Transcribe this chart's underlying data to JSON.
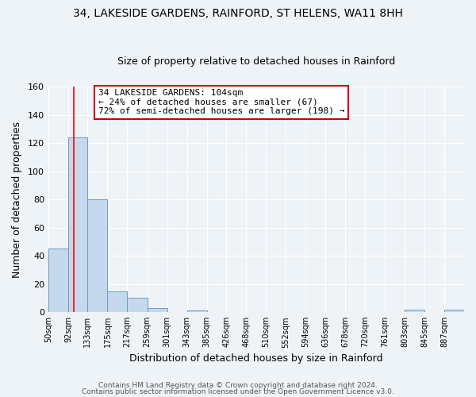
{
  "title": "34, LAKESIDE GARDENS, RAINFORD, ST HELENS, WA11 8HH",
  "subtitle": "Size of property relative to detached houses in Rainford",
  "xlabel": "Distribution of detached houses by size in Rainford",
  "ylabel": "Number of detached properties",
  "bin_edges": [
    50,
    92,
    133,
    175,
    217,
    259,
    301,
    343,
    385,
    426,
    468,
    510,
    552,
    594,
    636,
    678,
    720,
    761,
    803,
    845,
    887
  ],
  "bin_labels": [
    "50sqm",
    "92sqm",
    "133sqm",
    "175sqm",
    "217sqm",
    "259sqm",
    "301sqm",
    "343sqm",
    "385sqm",
    "426sqm",
    "468sqm",
    "510sqm",
    "552sqm",
    "594sqm",
    "636sqm",
    "678sqm",
    "720sqm",
    "761sqm",
    "803sqm",
    "845sqm",
    "887sqm"
  ],
  "bar_heights": [
    45,
    124,
    80,
    15,
    10,
    3,
    0,
    1,
    0,
    0,
    0,
    0,
    0,
    0,
    0,
    0,
    0,
    0,
    2,
    0,
    2
  ],
  "bar_color": "#c5d8ed",
  "bar_edge_color": "#6a9fc0",
  "red_line_x": 104,
  "ylim": [
    0,
    160
  ],
  "yticks": [
    0,
    20,
    40,
    60,
    80,
    100,
    120,
    140,
    160
  ],
  "annotation_title": "34 LAKESIDE GARDENS: 104sqm",
  "annotation_line1": "← 24% of detached houses are smaller (67)",
  "annotation_line2": "72% of semi-detached houses are larger (198) →",
  "footer1": "Contains HM Land Registry data © Crown copyright and database right 2024.",
  "footer2": "Contains public sector information licensed under the Open Government Licence v3.0.",
  "bg_color": "#eef3f8",
  "plot_bg_color": "#eef3f8",
  "title_fontsize": 10,
  "subtitle_fontsize": 9
}
